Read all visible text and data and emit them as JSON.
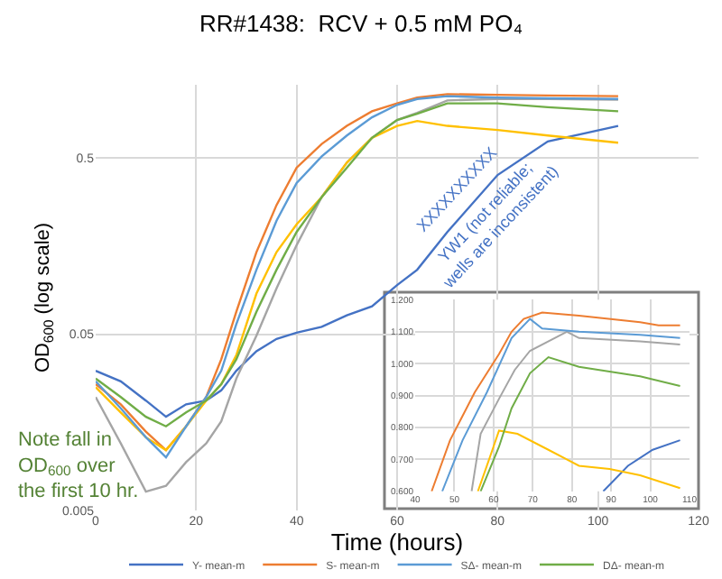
{
  "chart_data": [
    {
      "type": "line",
      "title": "RR#1438:  RCV + 0.5 mM PO₄",
      "xlabel": "Time (hours)",
      "ylabel": "OD$_{600}$ (log scale)",
      "x": [
        0,
        5,
        10,
        14,
        18,
        22,
        25,
        28,
        32,
        36,
        40,
        45,
        50,
        55,
        60,
        64,
        70,
        80,
        90,
        104
      ],
      "series": [
        {
          "name": "Y- mean-m",
          "color": "#4472c4",
          "values": [
            0.031,
            0.027,
            0.021,
            0.017,
            0.02,
            0.021,
            0.024,
            0.031,
            0.04,
            0.047,
            0.051,
            0.055,
            0.064,
            0.072,
            0.095,
            0.116,
            0.19,
            0.4,
            0.62,
            0.76
          ]
        },
        {
          "name": "S- mean-m",
          "color": "#ed7d31",
          "values": [
            0.026,
            0.02,
            0.014,
            0.011,
            0.015,
            0.022,
            0.036,
            0.067,
            0.146,
            0.27,
            0.44,
            0.6,
            0.76,
            0.92,
            1.02,
            1.1,
            1.15,
            1.14,
            1.13,
            1.12
          ]
        },
        {
          "color": "#a5a5a5",
          "values": [
            0.022,
            0.012,
            0.0064,
            0.0069,
            0.0094,
            0.012,
            0.016,
            0.028,
            0.049,
            0.091,
            0.16,
            0.3,
            0.47,
            0.65,
            0.82,
            0.9,
            1.06,
            1.08,
            1.08,
            1.07
          ]
        },
        {
          "color": "#ffc000",
          "values": [
            0.025,
            0.018,
            0.013,
            0.011,
            0.015,
            0.021,
            0.026,
            0.038,
            0.085,
            0.146,
            0.21,
            0.3,
            0.47,
            0.65,
            0.76,
            0.81,
            0.76,
            0.72,
            0.67,
            0.61
          ]
        },
        {
          "name": "SΔ- mean-m",
          "color": "#5b9bd5",
          "values": [
            0.027,
            0.019,
            0.013,
            0.01,
            0.015,
            0.022,
            0.031,
            0.057,
            0.116,
            0.22,
            0.36,
            0.51,
            0.67,
            0.85,
            1.0,
            1.08,
            1.12,
            1.1,
            1.09,
            1.08
          ]
        },
        {
          "name": "DΔ- mean-m",
          "color": "#70ad47",
          "values": [
            0.028,
            0.022,
            0.017,
            0.015,
            0.018,
            0.021,
            0.026,
            0.036,
            0.067,
            0.116,
            0.19,
            0.3,
            0.44,
            0.65,
            0.82,
            0.89,
            1.02,
            1.02,
            0.97,
            0.92
          ]
        }
      ],
      "log": true,
      "xlim": [
        0,
        120
      ],
      "xticks": [
        0,
        20,
        40,
        60,
        80,
        100,
        120
      ],
      "ylim": [
        0.005,
        1.3
      ],
      "yticks": [
        0.005,
        0.05,
        0.5
      ],
      "grid": true,
      "legend": "bottom",
      "annotations": [
        "XXXXXXXXXX",
        "YW1 (not reliable;\nwells are inconsistent)",
        "Note fall in\nOD$_{600}$ over\nthe first 10 hr."
      ]
    },
    {
      "type": "line",
      "series": [
        {
          "color": "#4472c4",
          "x": [
            88,
            94.3,
            100.6,
            107.6
          ],
          "values": [
            0.6,
            0.68,
            0.73,
            0.76
          ]
        },
        {
          "color": "#ed7d31",
          "x": [
            44.2,
            48.9,
            55.2,
            61.4,
            64.6,
            67.7,
            72.4,
            81.8,
            97.4,
            102.1,
            107.6
          ],
          "values": [
            0.6,
            0.76,
            0.91,
            1.03,
            1.1,
            1.14,
            1.16,
            1.15,
            1.13,
            1.12,
            1.12
          ]
        },
        {
          "color": "#a5a5a5",
          "x": [
            54.4,
            56.7,
            61.4,
            65.4,
            69.3,
            78.7,
            81.8,
            97.4,
            107.6
          ],
          "values": [
            0.6,
            0.78,
            0.89,
            0.98,
            1.04,
            1.1,
            1.08,
            1.07,
            1.06
          ]
        },
        {
          "color": "#ffc000",
          "x": [
            56,
            58.3,
            61.4,
            66.1,
            74,
            81.8,
            89.6,
            97.4,
            107.6
          ],
          "values": [
            0.6,
            0.68,
            0.79,
            0.78,
            0.73,
            0.68,
            0.67,
            0.65,
            0.61
          ]
        },
        {
          "color": "#5b9bd5",
          "x": [
            46.9,
            52.1,
            58.3,
            64.6,
            69.3,
            72.4,
            81.8,
            97.4,
            107.6
          ],
          "values": [
            0.6,
            0.76,
            0.91,
            1.08,
            1.14,
            1.11,
            1.1,
            1.09,
            1.08
          ]
        },
        {
          "color": "#70ad47",
          "x": [
            56.7,
            61.4,
            64.6,
            69.3,
            74,
            81.8,
            97.4,
            107.6
          ],
          "values": [
            0.6,
            0.74,
            0.86,
            0.97,
            1.02,
            0.99,
            0.96,
            0.93
          ]
        }
      ],
      "xlim": [
        40,
        110
      ],
      "xticks": [
        40,
        50,
        60,
        70,
        80,
        90,
        100,
        110
      ],
      "ylim": [
        0.6,
        1.2
      ],
      "yticks": [
        {
          "value": 0.6,
          "label": "0.600"
        },
        {
          "value": 0.7,
          "label": "0.700"
        },
        {
          "value": 0.8,
          "label": "0.800"
        },
        {
          "value": 0.9,
          "label": "0.900"
        },
        {
          "value": 1.0,
          "label": "1.000"
        },
        {
          "value": 1.1,
          "label": "1.100"
        },
        {
          "value": 1.2,
          "label": "1.200"
        }
      ],
      "grid": true
    }
  ]
}
